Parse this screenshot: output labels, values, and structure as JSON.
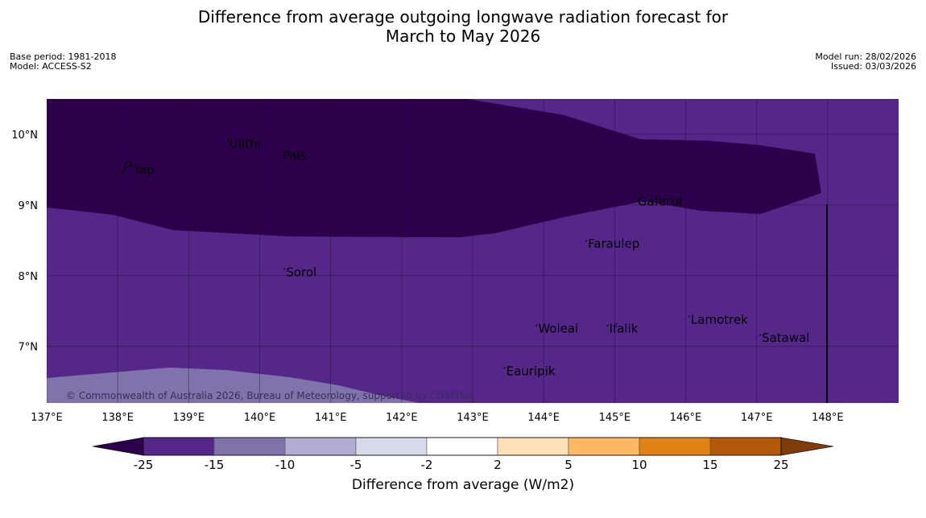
{
  "header": {
    "title_line1": "Difference from average outgoing longwave radiation forecast for",
    "title_line2": "March to May 2026",
    "base_period": "Base period: 1981-2018",
    "model": "Model: ACCESS-S2",
    "model_run": "Model run: 28/02/2026",
    "issued": "Issued: 03/03/2026"
  },
  "map": {
    "lon_range": [
      137,
      149
    ],
    "lat_range": [
      6.2,
      10.5
    ],
    "lon_ticks": [
      "137°E",
      "138°E",
      "139°E",
      "140°E",
      "141°E",
      "142°E",
      "143°E",
      "144°E",
      "145°E",
      "146°E",
      "147°E",
      "148°E"
    ],
    "lat_ticks": [
      "10°N",
      "9°N",
      "8°N",
      "7°N"
    ],
    "places": [
      {
        "name": "Yap",
        "lon": 138.2,
        "lat": 9.5
      },
      {
        "name": "Ulithi",
        "lon": 139.55,
        "lat": 9.87
      },
      {
        "name": "Pais",
        "lon": 140.3,
        "lat": 9.7
      },
      {
        "name": "Gaferut",
        "lon": 145.3,
        "lat": 9.05
      },
      {
        "name": "Faraulep",
        "lon": 144.6,
        "lat": 8.45
      },
      {
        "name": "Sorol",
        "lon": 140.35,
        "lat": 8.05
      },
      {
        "name": "Woleai",
        "lon": 143.9,
        "lat": 7.25
      },
      {
        "name": "Ifalik",
        "lon": 144.9,
        "lat": 7.25
      },
      {
        "name": "Lamotrek",
        "lon": 146.05,
        "lat": 7.38
      },
      {
        "name": "Satawal",
        "lon": 147.05,
        "lat": 7.12
      },
      {
        "name": "Eauripik",
        "lon": 143.45,
        "lat": 6.65
      }
    ],
    "copyright": "© Commonwealth of Australia 2026, Bureau of Meteorology, supported by COSPPac",
    "colors": {
      "lt_minus25": "#2d004b",
      "range_minus25_minus15": "#542788",
      "range_minus15_minus10": "#8073ac",
      "range_minus10_minus5": "#b2abd2",
      "range_minus5_minus2": "#d8daeb",
      "range_minus2_2": "#ffffff",
      "range_2_5": "#fee0b6",
      "range_5_10": "#fdb863",
      "range_10_15": "#e08214",
      "range_15_25": "#b35806",
      "gt_25": "#7f3b08"
    }
  },
  "colorbar": {
    "boundaries": [
      "-25",
      "-15",
      "-10",
      "-5",
      "-2",
      "2",
      "5",
      "10",
      "15",
      "25"
    ],
    "colors": [
      "#542788",
      "#8073ac",
      "#b2abd2",
      "#d8daeb",
      "#ffffff",
      "#fee0b6",
      "#fdb863",
      "#e08214",
      "#b35806"
    ],
    "under_color": "#2d004b",
    "over_color": "#7f3b08",
    "label": "Difference from average (W/m2)"
  }
}
